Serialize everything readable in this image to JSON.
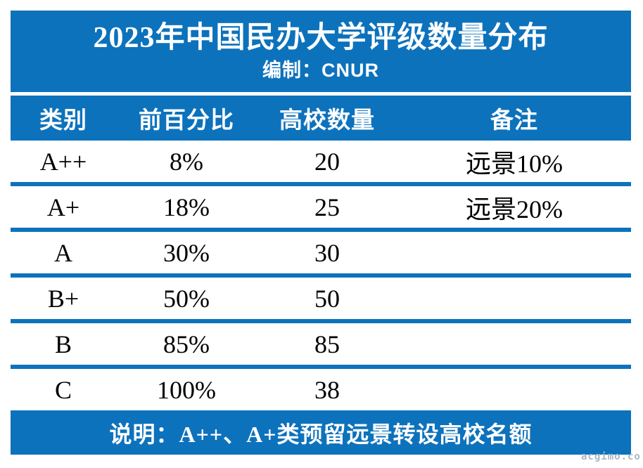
{
  "header": {
    "title": "2023年中国民办大学评级数量分布",
    "subtitle": "编制：CNUR"
  },
  "table": {
    "columns": [
      "类别",
      "前百分比",
      "高校数量",
      "备注"
    ],
    "rows": [
      {
        "category": "A++",
        "percent": "8%",
        "count": "20",
        "note": "远景10%"
      },
      {
        "category": "A+",
        "percent": "18%",
        "count": "25",
        "note": "远景20%"
      },
      {
        "category": "A",
        "percent": "30%",
        "count": "30",
        "note": ""
      },
      {
        "category": "B+",
        "percent": "50%",
        "count": "50",
        "note": ""
      },
      {
        "category": "B",
        "percent": "85%",
        "count": "85",
        "note": ""
      },
      {
        "category": "C",
        "percent": "100%",
        "count": "38",
        "note": ""
      }
    ]
  },
  "footer": {
    "note": "说明：A++、A+类预留远景转设高校名额"
  },
  "watermark": "acgimo.co",
  "colors": {
    "primary_blue": "#0d72bc",
    "band_text": "#ffffff",
    "data_text": "#000000",
    "watermark_gray": "#a9b8c2"
  },
  "chart_data": {
    "type": "table",
    "title": "2023年中国民办大学评级数量分布",
    "subtitle": "编制：CNUR",
    "columns": [
      "类别",
      "前百分比",
      "高校数量",
      "备注"
    ],
    "rows": [
      [
        "A++",
        "8%",
        20,
        "远景10%"
      ],
      [
        "A+",
        "18%",
        25,
        "远景20%"
      ],
      [
        "A",
        "30%",
        30,
        ""
      ],
      [
        "B+",
        "50%",
        50,
        ""
      ],
      [
        "B",
        "85%",
        85,
        ""
      ],
      [
        "C",
        "100%",
        38,
        ""
      ]
    ],
    "footnote": "说明：A++、A+类预留远景转设高校名额",
    "layout": "title band top, column headers on blue band, thick blue row separators, footnote band bottom"
  }
}
